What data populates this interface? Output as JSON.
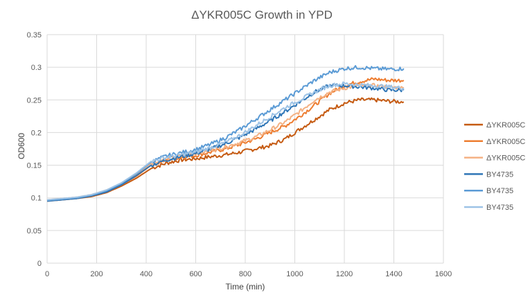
{
  "chart_data": {
    "type": "line",
    "title": "ΔYKR005C Growth in YPD",
    "xlabel": "Time (min)",
    "ylabel": "OD600",
    "xlim": [
      0,
      1600
    ],
    "ylim": [
      0,
      0.35
    ],
    "xticks": [
      "0",
      "200",
      "400",
      "600",
      "800",
      "1000",
      "1200",
      "1400",
      "1600"
    ],
    "yticks": [
      "0",
      "0.05",
      "0.1",
      "0.15",
      "0.2",
      "0.25",
      "0.3",
      "0.35"
    ],
    "grid": "vertical and horizontal",
    "legend": "right",
    "x": [
      0,
      60,
      120,
      180,
      240,
      300,
      360,
      420,
      480,
      540,
      600,
      660,
      720,
      780,
      840,
      900,
      960,
      1020,
      1080,
      1140,
      1200,
      1260,
      1320,
      1380,
      1440
    ],
    "series": [
      {
        "name": "ΔYKR005C",
        "color": "#C55A11",
        "values": [
          0.095,
          0.097,
          0.099,
          0.102,
          0.108,
          0.118,
          0.13,
          0.145,
          0.153,
          0.158,
          0.16,
          0.163,
          0.166,
          0.17,
          0.175,
          0.18,
          0.19,
          0.205,
          0.22,
          0.235,
          0.245,
          0.25,
          0.25,
          0.248,
          0.247
        ]
      },
      {
        "name": "ΔYKR005C",
        "color": "#ED7D31",
        "values": [
          0.096,
          0.098,
          0.1,
          0.104,
          0.11,
          0.12,
          0.133,
          0.15,
          0.158,
          0.162,
          0.165,
          0.17,
          0.175,
          0.182,
          0.19,
          0.2,
          0.21,
          0.225,
          0.242,
          0.26,
          0.272,
          0.278,
          0.282,
          0.28,
          0.28
        ]
      },
      {
        "name": "ΔYKR005C",
        "color": "#F4B183",
        "values": [
          0.097,
          0.099,
          0.101,
          0.105,
          0.112,
          0.122,
          0.136,
          0.153,
          0.16,
          0.164,
          0.168,
          0.173,
          0.178,
          0.185,
          0.193,
          0.204,
          0.216,
          0.232,
          0.25,
          0.262,
          0.268,
          0.272,
          0.272,
          0.27,
          0.268
        ]
      },
      {
        "name": "BY4735",
        "color": "#2E75B6",
        "values": [
          0.095,
          0.097,
          0.099,
          0.103,
          0.109,
          0.12,
          0.134,
          0.15,
          0.158,
          0.163,
          0.168,
          0.175,
          0.183,
          0.193,
          0.205,
          0.218,
          0.232,
          0.247,
          0.262,
          0.272,
          0.272,
          0.27,
          0.268,
          0.265,
          0.265
        ]
      },
      {
        "name": "BY4735",
        "color": "#5B9BD5",
        "values": [
          0.096,
          0.098,
          0.1,
          0.104,
          0.111,
          0.122,
          0.137,
          0.155,
          0.164,
          0.169,
          0.174,
          0.182,
          0.192,
          0.205,
          0.22,
          0.235,
          0.25,
          0.265,
          0.28,
          0.292,
          0.298,
          0.3,
          0.298,
          0.297,
          0.298
        ]
      },
      {
        "name": "BY4735",
        "color": "#9DC3E6",
        "values": [
          0.097,
          0.099,
          0.101,
          0.105,
          0.112,
          0.123,
          0.138,
          0.156,
          0.162,
          0.166,
          0.17,
          0.177,
          0.185,
          0.196,
          0.21,
          0.224,
          0.238,
          0.25,
          0.262,
          0.272,
          0.275,
          0.273,
          0.272,
          0.27,
          0.268
        ]
      }
    ]
  }
}
